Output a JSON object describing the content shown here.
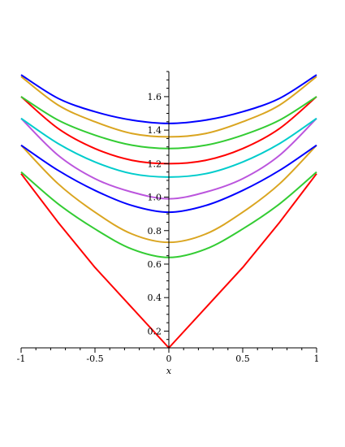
{
  "chart_data": {
    "type": "line",
    "title": "",
    "xlabel": "x",
    "ylabel": "",
    "xlim": [
      -1,
      1
    ],
    "ylim": [
      0.1,
      1.75
    ],
    "x_ticks": [
      -1,
      -0.5,
      0,
      0.5,
      1
    ],
    "x_tick_labels": [
      "-1",
      "-0.5",
      "0",
      "0.5",
      "1"
    ],
    "y_ticks": [
      0.2,
      0.4,
      0.6,
      0.8,
      1.0,
      1.2,
      1.4,
      1.6
    ],
    "y_tick_labels": [
      "0.2",
      "0.4",
      "0.6",
      "0.8",
      "1.0",
      "1.2",
      "1.4",
      "1.6"
    ],
    "grid": false,
    "legend": "none",
    "x": [
      -1,
      -0.75,
      -0.5,
      -0.25,
      0,
      0.25,
      0.5,
      0.75,
      1
    ],
    "series": [
      {
        "color": "#ff0000",
        "values": [
          1.14,
          0.85,
          0.58,
          0.34,
          0.1,
          0.34,
          0.58,
          0.85,
          1.14
        ]
      },
      {
        "color": "#33cc33",
        "values": [
          1.15,
          0.96,
          0.81,
          0.69,
          0.64,
          0.69,
          0.81,
          0.96,
          1.15
        ]
      },
      {
        "color": "#daa520",
        "values": [
          1.31,
          1.08,
          0.91,
          0.78,
          0.73,
          0.78,
          0.91,
          1.08,
          1.31
        ]
      },
      {
        "color": "#0000ff",
        "values": [
          1.31,
          1.16,
          1.04,
          0.95,
          0.91,
          0.95,
          1.04,
          1.16,
          1.31
        ]
      },
      {
        "color": "#bb55dd",
        "values": [
          1.47,
          1.25,
          1.11,
          1.03,
          0.99,
          1.03,
          1.11,
          1.25,
          1.47
        ]
      },
      {
        "color": "#00cccc",
        "values": [
          1.47,
          1.32,
          1.21,
          1.14,
          1.12,
          1.14,
          1.21,
          1.32,
          1.47
        ]
      },
      {
        "color": "#ff0000",
        "values": [
          1.6,
          1.41,
          1.29,
          1.22,
          1.2,
          1.22,
          1.29,
          1.41,
          1.6
        ]
      },
      {
        "color": "#33cc33",
        "values": [
          1.6,
          1.46,
          1.37,
          1.31,
          1.29,
          1.31,
          1.37,
          1.46,
          1.6
        ]
      },
      {
        "color": "#daa520",
        "values": [
          1.72,
          1.55,
          1.45,
          1.38,
          1.36,
          1.38,
          1.45,
          1.55,
          1.72
        ]
      },
      {
        "color": "#0000ff",
        "values": [
          1.73,
          1.59,
          1.51,
          1.46,
          1.44,
          1.46,
          1.51,
          1.59,
          1.73
        ]
      }
    ]
  }
}
